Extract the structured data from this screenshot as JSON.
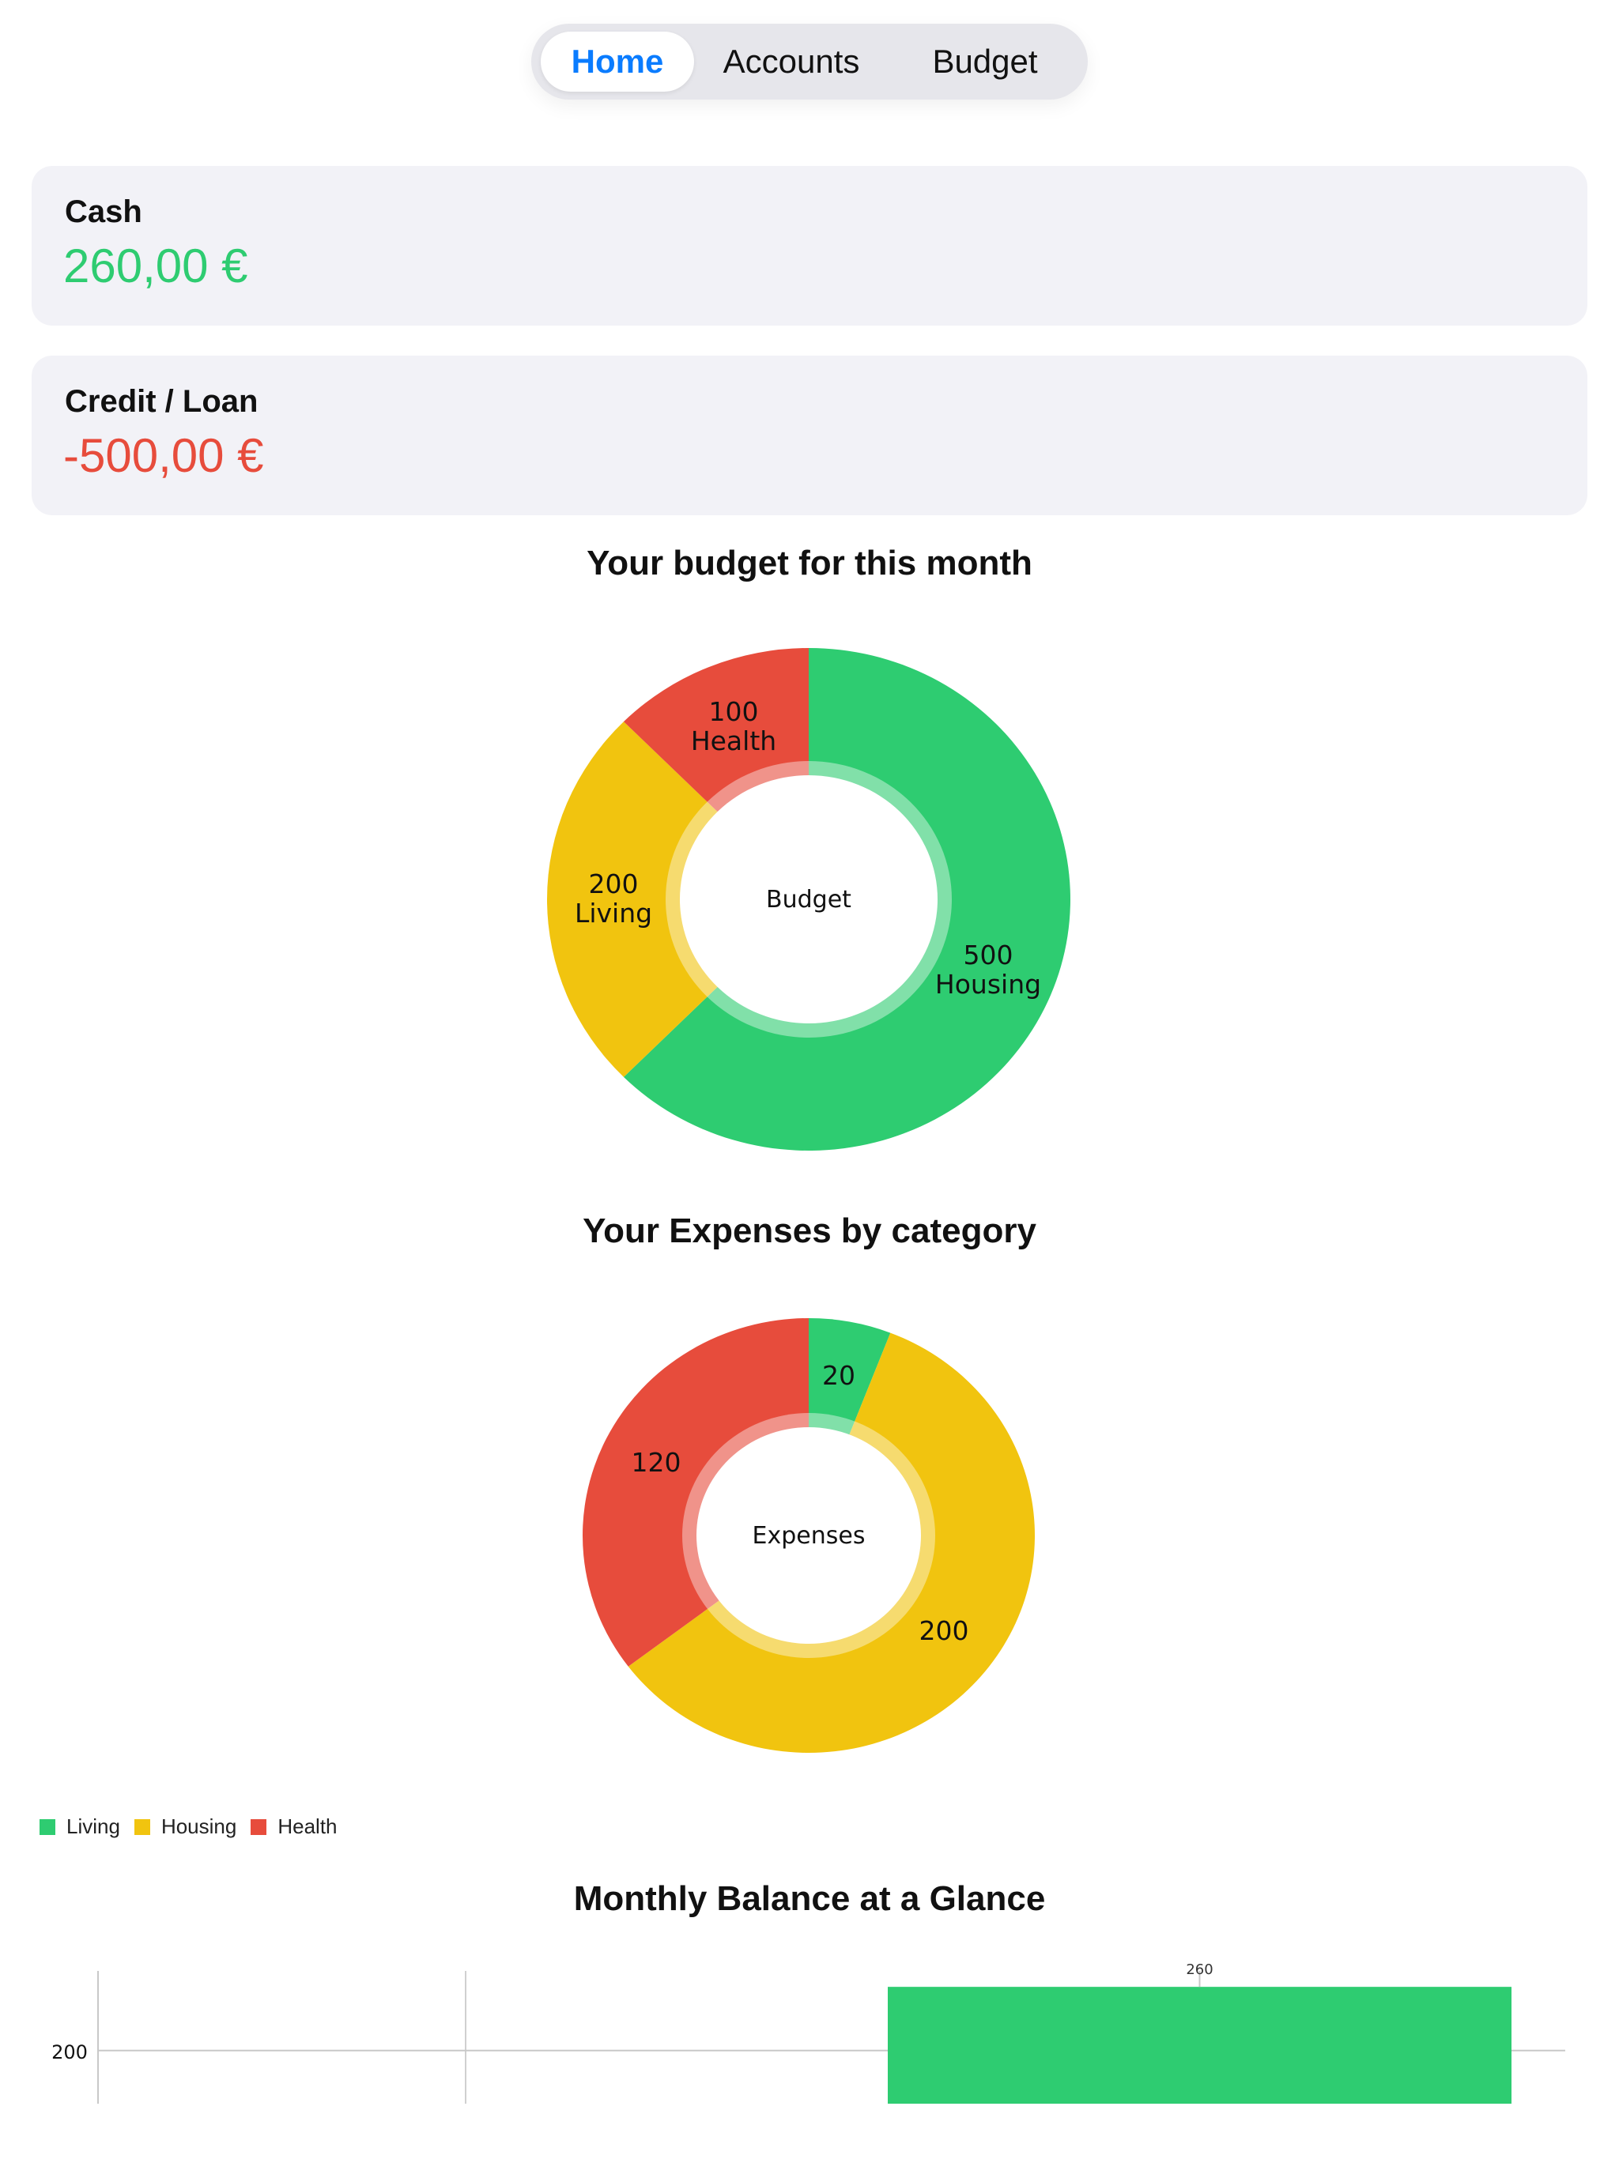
{
  "tabs": [
    {
      "label": "Home",
      "selected": true
    },
    {
      "label": "Accounts",
      "selected": false
    },
    {
      "label": "Budget",
      "selected": false
    }
  ],
  "accounts": {
    "cash": {
      "title": "Cash",
      "amount": "260,00 €",
      "color": "#2ecc71"
    },
    "credit": {
      "title": "Credit / Loan",
      "amount": "-500,00 €",
      "color": "#e74c3c"
    }
  },
  "colors": {
    "living": "#2ecc71",
    "housing": "#f1c40f",
    "health": "#e74c3c",
    "selected_tab": "#0a7cff"
  },
  "chart_data": [
    {
      "type": "pie",
      "variant": "donut",
      "title": "Your budget for this month",
      "center_label": "Budget",
      "slices": [
        {
          "name": "Housing",
          "value": 500,
          "label": "500",
          "color": "#2ecc71"
        },
        {
          "name": "Living",
          "value": 200,
          "label": "200",
          "color": "#f1c40f"
        },
        {
          "name": "Health",
          "value": 100,
          "label": "100",
          "color": "#e74c3c"
        }
      ]
    },
    {
      "type": "pie",
      "variant": "donut",
      "title": "Your Expenses by category",
      "center_label": "Expenses",
      "slices": [
        {
          "name": "Living",
          "value": 20,
          "label": "20",
          "color": "#2ecc71"
        },
        {
          "name": "Housing",
          "value": 200,
          "label": "200",
          "color": "#f1c40f"
        },
        {
          "name": "Health",
          "value": 120,
          "label": "120",
          "color": "#e74c3c"
        }
      ],
      "legend": [
        {
          "name": "Living",
          "color": "#2ecc71"
        },
        {
          "name": "Housing",
          "color": "#f1c40f"
        },
        {
          "name": "Health",
          "color": "#e74c3c"
        }
      ],
      "legend_position": "bottom-left"
    },
    {
      "type": "bar",
      "title": "Monthly Balance at a Glance",
      "values": [
        260
      ],
      "value_labels": [
        "260"
      ],
      "color": "#2ecc71",
      "y_ticks": [
        200
      ],
      "y_tick_labels": [
        "200"
      ]
    }
  ]
}
